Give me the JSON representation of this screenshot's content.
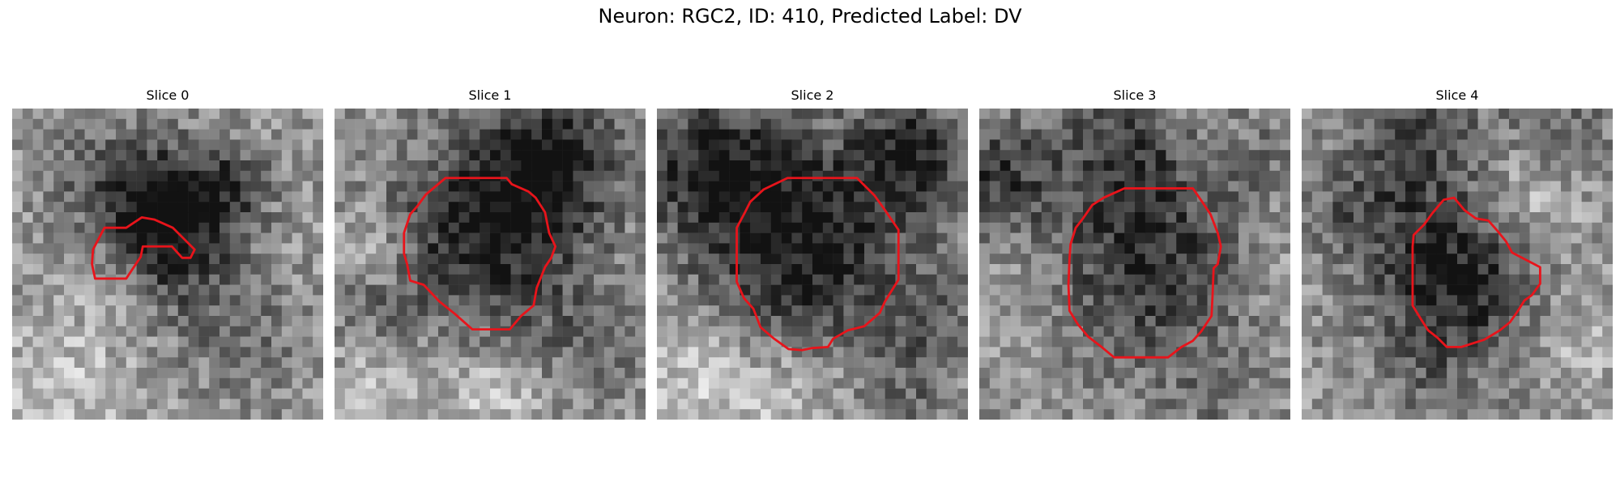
{
  "figure": {
    "title": "Neuron: RGC2, ID: 410, Predicted Label: DV"
  },
  "panels": [
    {
      "title": "Slice 0"
    },
    {
      "title": "Slice 1"
    },
    {
      "title": "Slice 2"
    },
    {
      "title": "Slice 3"
    },
    {
      "title": "Slice 4"
    }
  ],
  "colors": {
    "contour": "#e8141b",
    "background": "#ffffff"
  }
}
